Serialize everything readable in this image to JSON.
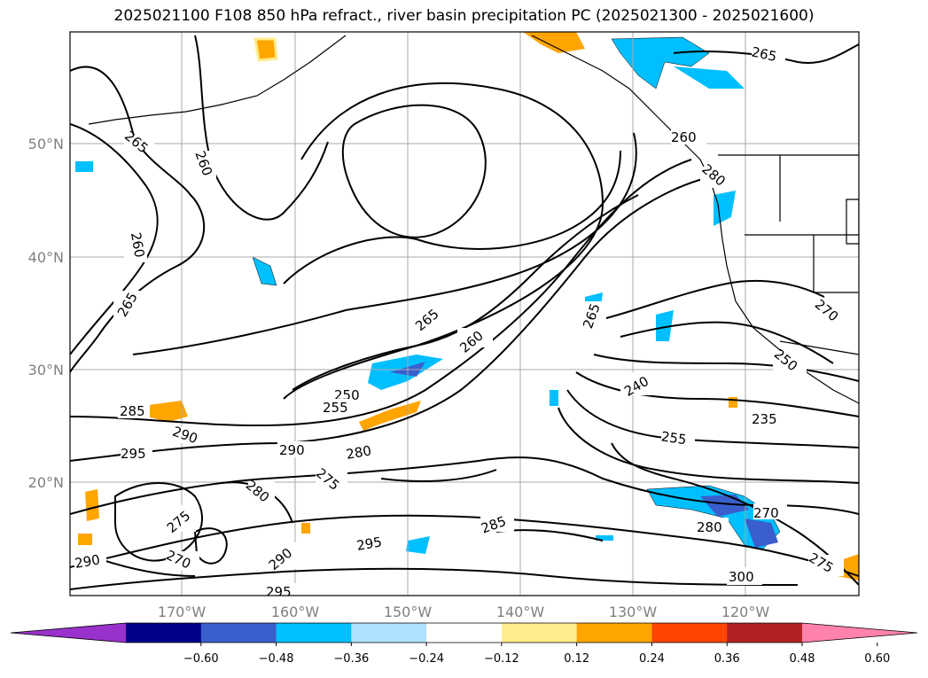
{
  "title": "2025021100 F108 850 hPa refract., river basin precipitation PC (2025021300 - 2025021600)",
  "lat_labels": [
    "50°N",
    "40°N",
    "30°N",
    "20°N"
  ],
  "lon_labels": [
    "170°W",
    "160°W",
    "150°W",
    "140°W",
    "130°W",
    "120°W"
  ],
  "contour_labels": [
    "265",
    "260",
    "260",
    "265",
    "265",
    "260",
    "250",
    "255",
    "285",
    "290",
    "295",
    "290",
    "280",
    "280",
    "275",
    "275",
    "270",
    "290",
    "290",
    "295",
    "285",
    "295",
    "265",
    "260",
    "265",
    "240",
    "255",
    "235",
    "280",
    "270",
    "300",
    "275",
    "280",
    "270",
    "250"
  ],
  "colorbar": {
    "ticks": [
      "−0.60",
      "−0.48",
      "−0.36",
      "−0.24",
      "−0.12",
      "0.12",
      "0.24",
      "0.36",
      "0.48",
      "0.60"
    ],
    "colors": [
      "#9932cc",
      "#00008b",
      "#3a5fcd",
      "#00bfff",
      "#b0e2ff",
      "#ffffff",
      "#ffec8b",
      "#ffa500",
      "#ff4500",
      "#b22222",
      "#ff82ab"
    ]
  }
}
